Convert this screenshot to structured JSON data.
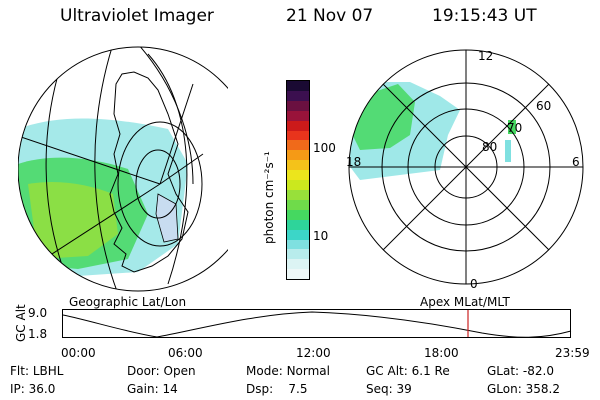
{
  "header": {
    "instrument": "Ultraviolet Imager",
    "date": "21 Nov 07",
    "time": "19:15:43 UT"
  },
  "geo_panel": {
    "label": "Geographic Lat/Lon"
  },
  "apex_panel": {
    "label": "Apex  MLat/MLT",
    "lat_labels": [
      "80",
      "70",
      "60"
    ],
    "mlt_labels": {
      "top": "12",
      "left": "18",
      "right": "6",
      "bottom": "0"
    }
  },
  "colorbar": {
    "unit_label": "photon cm⁻²s⁻¹",
    "tick_labels": [
      "100",
      "10"
    ],
    "colors": [
      "#1a0a33",
      "#3b0f4f",
      "#6a1040",
      "#99133a",
      "#cc1a1a",
      "#e8341c",
      "#f06a1a",
      "#f59a16",
      "#f4c21a",
      "#ece51c",
      "#cbe81e",
      "#98e03a",
      "#6fdb4a",
      "#45d860",
      "#2ed49a",
      "#3cd6c8",
      "#7fe0e0",
      "#b8ecec",
      "#dcf4f4",
      "#eef8f8"
    ]
  },
  "altitude_plot": {
    "y_label": "GC Alt",
    "y_ticks": [
      "9.0",
      "1.8"
    ],
    "x_ticks": [
      "00:00",
      "06:00",
      "12:00",
      "18:00",
      "23:59"
    ],
    "marker_color": "#cc2222"
  },
  "info": {
    "filter": {
      "label": "Flt:",
      "value": "LBHL"
    },
    "ip": {
      "label": "IP:",
      "value": "36.0"
    },
    "door": {
      "label": "Door:",
      "value": "Open"
    },
    "gain": {
      "label": "Gain:",
      "value": "14"
    },
    "mode": {
      "label": "Mode:",
      "value": "Normal"
    },
    "dsp": {
      "label": "Dsp:",
      "value": "7.5"
    },
    "gc_alt": {
      "label": "GC Alt:",
      "value": "6.1 Re"
    },
    "seq": {
      "label": "Seq:",
      "value": "39"
    },
    "glat": {
      "label": "GLat:",
      "value": "-82.0"
    },
    "glon": {
      "label": "GLon:",
      "value": "358.2"
    }
  }
}
